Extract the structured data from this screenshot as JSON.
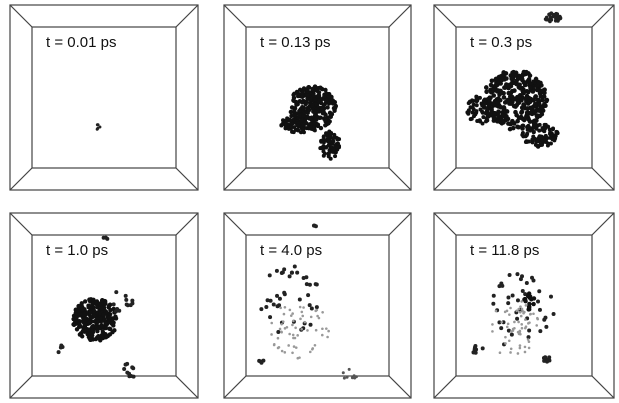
{
  "panels": [
    {
      "label": "t = 0.01 ps"
    },
    {
      "label": "t = 0.13 ps"
    },
    {
      "label": "t = 0.3 ps"
    },
    {
      "label": "t = 1.0 ps"
    },
    {
      "label": "t = 4.0 ps"
    },
    {
      "label": "t = 11.8 ps"
    }
  ]
}
